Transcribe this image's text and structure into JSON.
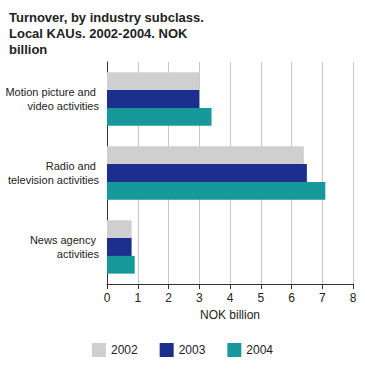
{
  "chart_data": {
    "type": "bar",
    "orientation": "horizontal",
    "title": "Turnover, by industry subclass. Local KAUs. 2002-2004. NOK billion",
    "x_label": "NOK billion",
    "categories": [
      "News agency activities",
      "Radio and television activities",
      "Motion picture and video activities"
    ],
    "series": [
      {
        "name": "2002",
        "color": "#cfcfcf",
        "values": [
          0.8,
          6.4,
          3.0
        ]
      },
      {
        "name": "2003",
        "color": "#1c2f8f",
        "values": [
          0.8,
          6.5,
          3.0
        ]
      },
      {
        "name": "2004",
        "color": "#17999b",
        "values": [
          0.9,
          7.1,
          3.4
        ]
      }
    ],
    "xlim": [
      0,
      8
    ],
    "xticks": [
      0,
      1,
      2,
      3,
      4,
      5,
      6,
      7,
      8
    ],
    "grid": true,
    "legend": "bottom"
  }
}
